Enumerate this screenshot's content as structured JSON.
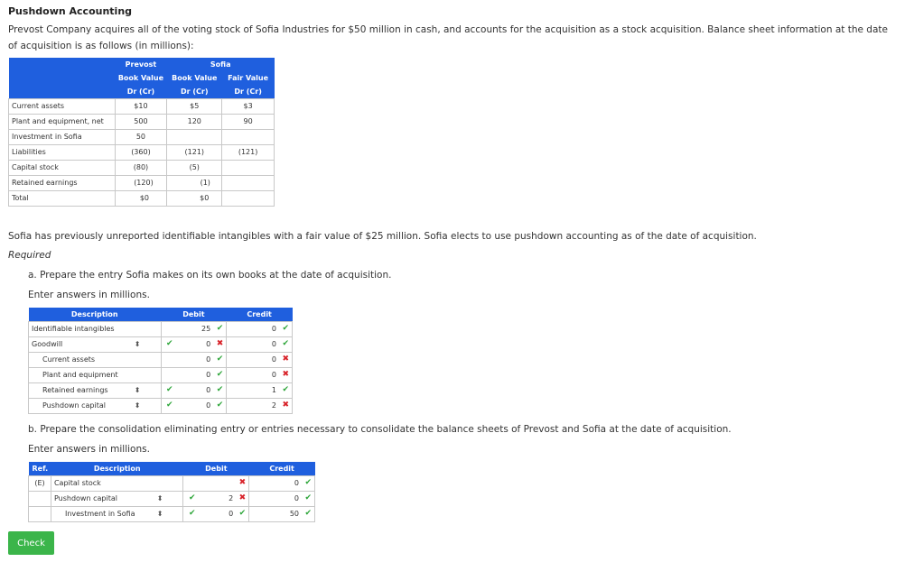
{
  "page": {
    "title": "Pushdown Accounting",
    "intro": "Prevost Company acquires all of the voting stock of Sofia Industries for $50 million in cash, and accounts for the acquisition as a stock acquisition. Balance sheet information at the date of acquisition is as follows (in millions):",
    "after_table": "Sofia has previously unreported identifiable intangibles with a fair value of $25 million. Sofia elects to use pushdown accounting as of the date of acquisition.",
    "required": "Required",
    "part_a": "a. Prepare the entry Sofia makes on its own books at the date of acquisition.",
    "part_a_note": "Enter answers in millions.",
    "part_b": "b. Prepare the consolidation eliminating entry or entries necessary to consolidate the balance sheets of Prevost and Sofia at the date of acquisition.",
    "part_b_note": "Enter answers in millions.",
    "check_label": "Check"
  },
  "balance_table": {
    "header": {
      "prevost": "Prevost",
      "sofia": "Sofia",
      "col1": [
        "Book Value",
        "Dr (Cr)"
      ],
      "col2": [
        "Book Value",
        "Dr (Cr)"
      ],
      "col3": [
        "Fair Value",
        "Dr (Cr)"
      ]
    },
    "rows": [
      {
        "label": "Current assets",
        "c1": "$10",
        "c2": "$5",
        "c3": "$3"
      },
      {
        "label": "Plant and equipment, net",
        "c1": "500",
        "c2": "120",
        "c3": "90"
      },
      {
        "label": "Investment in Sofia",
        "c1": "50",
        "c2": "",
        "c3": ""
      },
      {
        "label": "Liabilities",
        "c1": "(360)",
        "c2": "(121)",
        "c3": "(121)"
      },
      {
        "label": "Capital stock",
        "c1": "(80)",
        "c2": "(5)",
        "c3": ""
      },
      {
        "label": "Retained earnings",
        "c1": "(120)",
        "c2": "(1)",
        "c3": ""
      },
      {
        "label": "Total",
        "c1": "$0",
        "c2": "$0",
        "c3": ""
      }
    ]
  },
  "entry_a": {
    "headers": {
      "description": "Description",
      "debit": "Debit",
      "credit": "Credit"
    },
    "rows": [
      {
        "description": "Identifiable intangibles",
        "debit": "25",
        "debit_mark": "✔",
        "credit": "0",
        "credit_mark": "✔"
      },
      {
        "description": "Goodwill",
        "debit": "0",
        "debit_mark": "✖",
        "credit": "0",
        "credit_mark": "✔",
        "dropdown": "true",
        "desc_mark": "✔"
      },
      {
        "description": "Current assets",
        "debit": "0",
        "debit_mark": "✔",
        "credit": "0",
        "credit_mark": "✖"
      },
      {
        "description": "Plant and equipment",
        "debit": "0",
        "debit_mark": "✔",
        "credit": "0",
        "credit_mark": "✖"
      },
      {
        "description": "Retained earnings",
        "debit": "0",
        "debit_mark": "✔",
        "credit": "1",
        "credit_mark": "✔",
        "dropdown": "true",
        "desc_mark": "✔"
      },
      {
        "description": "Pushdown capital",
        "debit": "0",
        "debit_mark": "✔",
        "credit": "2",
        "credit_mark": "✖",
        "dropdown": "true",
        "desc_mark": "✔"
      }
    ]
  },
  "entry_b": {
    "headers": {
      "ref": "Ref.",
      "description": "Description",
      "debit": "Debit",
      "credit": "Credit"
    },
    "rows": [
      {
        "ref": "(E)",
        "description": "Capital stock",
        "debit": "",
        "debit_mark": "✖",
        "credit": "0",
        "credit_mark": "✔"
      },
      {
        "ref": "",
        "description": "Pushdown capital",
        "debit": "2",
        "debit_mark": "✖",
        "credit": "0",
        "credit_mark": "✔",
        "dropdown": "true",
        "desc_mark": "✔"
      },
      {
        "ref": "",
        "description": "Investment in Sofia",
        "debit": "0",
        "debit_mark": "✔",
        "credit": "50",
        "credit_mark": "✔",
        "dropdown": "true",
        "desc_mark": "✔"
      }
    ]
  },
  "icons": {
    "dropdown": "updown-arrows-icon",
    "ok": "checkmark-icon",
    "bad": "x-mark-icon"
  },
  "colors": {
    "header_blue": "#1f5fde",
    "ok_green": "#2ea63a",
    "bad_red": "#d8232a",
    "button_green": "#3bb54a"
  }
}
